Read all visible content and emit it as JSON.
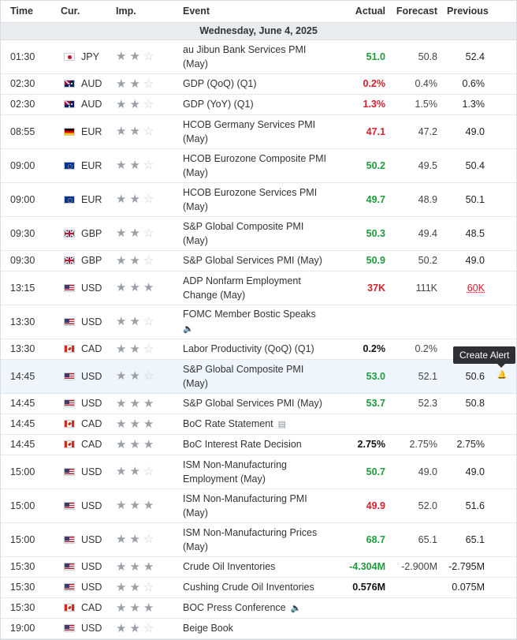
{
  "header": {
    "time": "Time",
    "currency": "Cur.",
    "importance": "Imp.",
    "event": "Event",
    "actual": "Actual",
    "forecast": "Forecast",
    "previous": "Previous"
  },
  "date_label": "Wednesday, June 4, 2025",
  "tooltip": "Create Alert",
  "colors": {
    "positive": "#1e9c3b",
    "negative": "#d91e2b",
    "highlight": "#eef5fd",
    "date_bar": "#e9ecef"
  },
  "rows": [
    {
      "time": "01:30",
      "flag": "jp-flag-icon",
      "currency": "JPY",
      "importance": 2,
      "event": [
        "au Jibun Bank Services PMI",
        "(May)"
      ],
      "actual": "51.0",
      "actual_tone": "pos",
      "forecast": "50.8",
      "previous": "52.4"
    },
    {
      "time": "02:30",
      "flag": "au-flag-icon",
      "currency": "AUD",
      "importance": 2,
      "event": [
        "GDP (QoQ) (Q1)"
      ],
      "actual": "0.2%",
      "actual_tone": "neg",
      "forecast": "0.4%",
      "previous": "0.6%"
    },
    {
      "time": "02:30",
      "flag": "au-flag-icon",
      "currency": "AUD",
      "importance": 2,
      "event": [
        "GDP (YoY) (Q1)"
      ],
      "actual": "1.3%",
      "actual_tone": "neg",
      "forecast": "1.5%",
      "previous": "1.3%"
    },
    {
      "time": "08:55",
      "flag": "de-flag-icon",
      "currency": "EUR",
      "importance": 2,
      "event": [
        "HCOB Germany Services PMI",
        "(May)"
      ],
      "actual": "47.1",
      "actual_tone": "neg",
      "forecast": "47.2",
      "previous": "49.0"
    },
    {
      "time": "09:00",
      "flag": "eu-flag-icon",
      "currency": "EUR",
      "importance": 2,
      "event": [
        "HCOB Eurozone Composite PMI",
        "(May)"
      ],
      "actual": "50.2",
      "actual_tone": "pos",
      "forecast": "49.5",
      "previous": "50.4"
    },
    {
      "time": "09:00",
      "flag": "eu-flag-icon",
      "currency": "EUR",
      "importance": 2,
      "event": [
        "HCOB Eurozone Services PMI",
        "(May)"
      ],
      "actual": "49.7",
      "actual_tone": "pos",
      "forecast": "48.9",
      "previous": "50.1"
    },
    {
      "time": "09:30",
      "flag": "gb-flag-icon",
      "currency": "GBP",
      "importance": 2,
      "event": [
        "S&P Global Composite PMI",
        "(May)"
      ],
      "actual": "50.3",
      "actual_tone": "pos",
      "forecast": "49.4",
      "previous": "48.5"
    },
    {
      "time": "09:30",
      "flag": "gb-flag-icon",
      "currency": "GBP",
      "importance": 2,
      "event": [
        "S&P Global Services PMI (May)"
      ],
      "actual": "50.9",
      "actual_tone": "pos",
      "forecast": "50.2",
      "previous": "49.0"
    },
    {
      "time": "13:15",
      "flag": "us-flag-icon",
      "currency": "USD",
      "importance": 3,
      "event": [
        "ADP Nonfarm Employment",
        "Change (May)"
      ],
      "actual": "37K",
      "actual_tone": "neg",
      "forecast": "111K",
      "previous": "60K",
      "previous_revised": true
    },
    {
      "time": "13:30",
      "flag": "us-flag-icon",
      "currency": "USD",
      "importance": 2,
      "event": [
        "FOMC Member Bostic Speaks"
      ],
      "event_icon": "speaker-icon",
      "event_icon_glyph": "🔈",
      "event_icon_newline": true,
      "actual": "",
      "actual_tone": "neu",
      "forecast": "",
      "previous": ""
    },
    {
      "time": "13:30",
      "flag": "ca-flag-icon",
      "currency": "CAD",
      "importance": 2,
      "event": [
        "Labor Productivity (QoQ) (Q1)"
      ],
      "actual": "0.2%",
      "actual_tone": "neu",
      "forecast": "0.2%",
      "previous": ""
    },
    {
      "time": "14:45",
      "flag": "us-flag-icon",
      "currency": "USD",
      "importance": 2,
      "event": [
        "S&P Global Composite PMI",
        "(May)"
      ],
      "actual": "53.0",
      "actual_tone": "pos",
      "forecast": "52.1",
      "previous": "50.6",
      "highlight": true,
      "bell": true
    },
    {
      "time": "14:45",
      "flag": "us-flag-icon",
      "currency": "USD",
      "importance": 3,
      "event": [
        "S&P Global Services PMI (May)"
      ],
      "actual": "53.7",
      "actual_tone": "pos",
      "forecast": "52.3",
      "previous": "50.8"
    },
    {
      "time": "14:45",
      "flag": "ca-flag-icon",
      "currency": "CAD",
      "importance": 3,
      "event": [
        "BoC Rate Statement"
      ],
      "event_icon": "document-icon",
      "event_icon_glyph": "▤",
      "actual": "",
      "actual_tone": "neu",
      "forecast": "",
      "previous": ""
    },
    {
      "time": "14:45",
      "flag": "ca-flag-icon",
      "currency": "CAD",
      "importance": 3,
      "event": [
        "BoC Interest Rate Decision"
      ],
      "actual": "2.75%",
      "actual_tone": "neu",
      "forecast": "2.75%",
      "previous": "2.75%"
    },
    {
      "time": "15:00",
      "flag": "us-flag-icon",
      "currency": "USD",
      "importance": 2,
      "event": [
        "ISM Non-Manufacturing",
        "Employment (May)"
      ],
      "actual": "50.7",
      "actual_tone": "pos",
      "forecast": "49.0",
      "previous": "49.0"
    },
    {
      "time": "15:00",
      "flag": "us-flag-icon",
      "currency": "USD",
      "importance": 3,
      "event": [
        "ISM Non-Manufacturing PMI",
        "(May)"
      ],
      "actual": "49.9",
      "actual_tone": "neg",
      "forecast": "52.0",
      "previous": "51.6"
    },
    {
      "time": "15:00",
      "flag": "us-flag-icon",
      "currency": "USD",
      "importance": 2,
      "event": [
        "ISM Non-Manufacturing Prices",
        "(May)"
      ],
      "actual": "68.7",
      "actual_tone": "pos",
      "forecast": "65.1",
      "previous": "65.1"
    },
    {
      "time": "15:30",
      "flag": "us-flag-icon",
      "currency": "USD",
      "importance": 3,
      "event": [
        "Crude Oil Inventories"
      ],
      "actual": "-4.304M",
      "actual_tone": "pos",
      "forecast": "-2.900M",
      "previous": "-2.795M"
    },
    {
      "time": "15:30",
      "flag": "us-flag-icon",
      "currency": "USD",
      "importance": 2,
      "event": [
        "Cushing Crude Oil Inventories"
      ],
      "actual": "0.576M",
      "actual_tone": "neu",
      "forecast": "",
      "previous": "0.075M"
    },
    {
      "time": "15:30",
      "flag": "ca-flag-icon",
      "currency": "CAD",
      "importance": 3,
      "event": [
        "BOC Press Conference"
      ],
      "event_icon": "speaker-icon",
      "event_icon_glyph": "🔈",
      "actual": "",
      "actual_tone": "neu",
      "forecast": "",
      "previous": ""
    },
    {
      "time": "19:00",
      "flag": "us-flag-icon",
      "currency": "USD",
      "importance": 2,
      "event": [
        "Beige Book"
      ],
      "actual": "",
      "actual_tone": "neu",
      "forecast": "",
      "previous": ""
    }
  ]
}
